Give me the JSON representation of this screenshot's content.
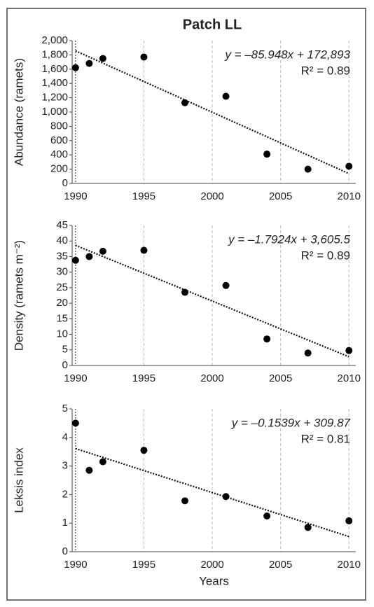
{
  "chart_data": [
    {
      "type": "scatter",
      "title": "Patch LL",
      "y_label": "Abundance (ramets)",
      "x": [
        1990,
        1991,
        1992,
        1995,
        1998,
        2001,
        2004,
        2007,
        2010
      ],
      "values": [
        1620,
        1680,
        1750,
        1770,
        1130,
        1220,
        410,
        200,
        240
      ],
      "color": "#000000",
      "trendline": {
        "x": [
          1990,
          2010
        ],
        "y": [
          1856.5,
          137.5
        ]
      },
      "equation": "y = –85.948x + 172,893",
      "r_squared": "R² = 0.89",
      "xlim": [
        1989.75,
        2010.5
      ],
      "xticks": [
        1990,
        1995,
        2000,
        2005,
        2010
      ],
      "ylim": [
        0,
        2000
      ],
      "yticks": [
        0,
        200,
        400,
        600,
        800,
        {
          "value": 1000,
          "label": "1,000"
        },
        {
          "value": 1200,
          "label": "1,200"
        },
        {
          "value": 1400,
          "label": "1,400"
        },
        {
          "value": 1600,
          "label": "1,600"
        },
        {
          "value": 1800,
          "label": "1,800"
        },
        {
          "value": 2000,
          "label": "2,000"
        }
      ],
      "grid": true
    },
    {
      "type": "scatter",
      "y_label": "Density (ramets m⁻²)",
      "x": [
        1990,
        1991,
        1992,
        1995,
        1998,
        2001,
        2004,
        2007,
        2010
      ],
      "values": [
        33.8,
        35,
        36.7,
        37,
        23.5,
        25.7,
        8.5,
        4,
        4.8
      ],
      "color": "#000000",
      "trendline": {
        "x": [
          1990,
          2010
        ],
        "y": [
          38.6,
          2.8
        ]
      },
      "equation": "y = –1.7924x + 3,605.5",
      "r_squared": "R² = 0.89",
      "xlim": [
        1989.75,
        2010.5
      ],
      "xticks": [
        1990,
        1995,
        2000,
        2005,
        2010
      ],
      "ylim": [
        0,
        45
      ],
      "yticks": [
        0,
        5,
        10,
        15,
        20,
        25,
        30,
        35,
        40,
        45
      ],
      "grid": true
    },
    {
      "type": "scatter",
      "y_label": "Leksis index",
      "x_label": "Years",
      "x": [
        1990,
        1991,
        1992,
        1995,
        1998,
        2001,
        2004,
        2007,
        2010
      ],
      "values": [
        4.5,
        2.85,
        3.15,
        3.55,
        1.78,
        1.93,
        1.25,
        0.85,
        1.08
      ],
      "color": "#000000",
      "trendline": {
        "x": [
          1990,
          2010
        ],
        "y": [
          3.61,
          0.53
        ]
      },
      "equation": "y = –0.1539x + 309.87",
      "r_squared": "R² = 0.81",
      "xlim": [
        1989.75,
        2010.5
      ],
      "xticks": [
        1990,
        1995,
        2000,
        2005,
        2010
      ],
      "ylim": [
        0,
        5
      ],
      "yticks": [
        0,
        1,
        2,
        3,
        4,
        5
      ],
      "grid": true
    }
  ]
}
